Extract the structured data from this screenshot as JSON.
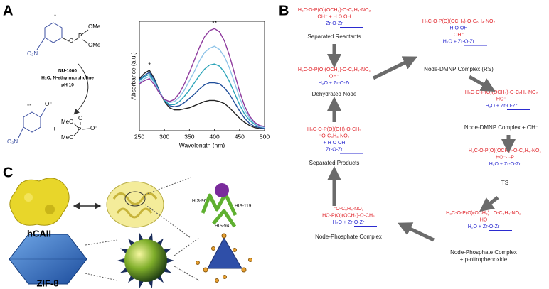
{
  "panels": {
    "a": "A",
    "b": "B",
    "c": "C"
  },
  "scheme_a": {
    "reactant": {
      "mark": "*",
      "nitro": "O₂N",
      "oxygen": "O",
      "phosphorus": "P",
      "methoxy": [
        "OMe",
        "OMe"
      ]
    },
    "conditions": [
      "NU-1000",
      "H₂O, N-ethylmorpholine",
      "pH 10"
    ],
    "products": {
      "mark": "**",
      "phenoxide": "O⁻",
      "nitro": "O₂N",
      "plus": "+",
      "methoxy": [
        "MeO",
        "MeO"
      ],
      "phosphorus": "P",
      "oxygen": "O",
      "oxide": "O⁻"
    }
  },
  "chart_data": {
    "type": "line",
    "xlabel": "Wavelength (nm)",
    "ylabel": "Absorbance (a.u.)",
    "x": [
      250,
      260,
      270,
      280,
      290,
      300,
      310,
      320,
      330,
      340,
      350,
      360,
      370,
      380,
      390,
      400,
      410,
      420,
      430,
      440,
      450,
      460,
      470,
      480,
      490,
      500
    ],
    "series": [
      {
        "color": "#222222",
        "values": [
          0.5,
          0.55,
          0.58,
          0.5,
          0.38,
          0.28,
          0.22,
          0.2,
          0.2,
          0.21,
          0.22,
          0.24,
          0.26,
          0.28,
          0.29,
          0.29,
          0.28,
          0.26,
          0.22,
          0.17,
          0.12,
          0.08,
          0.05,
          0.03,
          0.02,
          0.02
        ]
      },
      {
        "color": "#1f4e9a",
        "values": [
          0.49,
          0.53,
          0.56,
          0.49,
          0.38,
          0.29,
          0.24,
          0.23,
          0.24,
          0.27,
          0.31,
          0.35,
          0.4,
          0.44,
          0.46,
          0.46,
          0.45,
          0.41,
          0.35,
          0.27,
          0.19,
          0.12,
          0.07,
          0.04,
          0.03,
          0.02
        ]
      },
      {
        "color": "#2aa3b8",
        "values": [
          0.48,
          0.52,
          0.54,
          0.47,
          0.37,
          0.29,
          0.25,
          0.25,
          0.28,
          0.33,
          0.39,
          0.46,
          0.53,
          0.59,
          0.63,
          0.64,
          0.62,
          0.56,
          0.47,
          0.36,
          0.25,
          0.16,
          0.1,
          0.06,
          0.04,
          0.03
        ]
      },
      {
        "color": "#8fc4e8",
        "values": [
          0.46,
          0.5,
          0.52,
          0.46,
          0.37,
          0.3,
          0.27,
          0.28,
          0.32,
          0.39,
          0.48,
          0.57,
          0.67,
          0.75,
          0.79,
          0.81,
          0.78,
          0.71,
          0.6,
          0.46,
          0.32,
          0.2,
          0.12,
          0.07,
          0.04,
          0.03
        ]
      },
      {
        "color": "#8e3a9d",
        "values": [
          0.45,
          0.48,
          0.5,
          0.44,
          0.36,
          0.3,
          0.28,
          0.3,
          0.36,
          0.45,
          0.56,
          0.68,
          0.8,
          0.9,
          0.96,
          0.98,
          0.95,
          0.86,
          0.72,
          0.55,
          0.38,
          0.24,
          0.14,
          0.08,
          0.05,
          0.04
        ]
      }
    ],
    "xlim": [
      250,
      500
    ],
    "ylim": [
      0,
      1.05
    ],
    "xticks": [
      250,
      300,
      350,
      400,
      450,
      500
    ],
    "annotations": [
      {
        "text": "*",
        "x": 270
      },
      {
        "text": "**",
        "x": 400
      }
    ]
  },
  "scheme_b": {
    "states": [
      {
        "label": [
          "Separated Reactants"
        ],
        "species": [
          {
            "text": "H₃C-O-P(O)(OCH₃)-O-C₆H₄-NO₂",
            "color": "#e0242a"
          },
          {
            "text": "OH⁻    +    H  O  OH",
            "color": "#e0242a"
          },
          {
            "text": "Zr-O-Zr",
            "color": "#2b2bd0"
          }
        ]
      },
      {
        "label": [
          "Dehydrated Node"
        ],
        "species": [
          {
            "text": "H₃C-O-P(O)(OCH₃)-O-C₆H₄-NO₂",
            "color": "#e0242a"
          },
          {
            "text": "OH⁻",
            "color": "#e0242a"
          },
          {
            "text": "H₂O  +  Zr-O-Zr",
            "color": "#2b2bd0"
          }
        ]
      },
      {
        "label": [
          "Node-DMNP Complex (RS)"
        ],
        "species": [
          {
            "text": "H₃C-O-P(O)(OCH₃)-O-C₆H₄-NO₂",
            "color": "#e0242a"
          },
          {
            "text": "H  O  OH",
            "color": "#2b2bd0"
          },
          {
            "text": "OH⁻",
            "color": "#e0242a"
          },
          {
            "text": "H₂O  +  Zr-O-Zr",
            "color": "#2b2bd0"
          }
        ]
      },
      {
        "label": [
          "Node-DMNP Complex + OH⁻"
        ],
        "species": [
          {
            "text": "H₃C-O-P(O)(OCH₃)-O-C₆H₄-NO₂",
            "color": "#e0242a"
          },
          {
            "text": "HO⁻",
            "color": "#e0242a"
          },
          {
            "text": "H₂O  +  Zr-O-Zr",
            "color": "#2b2bd0"
          }
        ]
      },
      {
        "label": [
          "TS"
        ],
        "species": [
          {
            "text": "H₃C-O-P(O)(OCH₃)-O-C₆H₄-NO₂",
            "color": "#e0242a"
          },
          {
            "text": "HO⁻···P",
            "color": "#e0242a"
          },
          {
            "text": "H₂O  +  Zr-O-Zr",
            "color": "#2b2bd0"
          }
        ]
      },
      {
        "label": [
          "Node-Phosphate Complex",
          "+ p-nitrophenoxide"
        ],
        "species": [
          {
            "text": "H₃C-O-P(O)(OCH₃)   ⁻O-C₆H₄-NO₂",
            "color": "#e0242a"
          },
          {
            "text": "HO",
            "color": "#e0242a"
          },
          {
            "text": "H₂O  +  Zr-O-Zr",
            "color": "#2b2bd0"
          }
        ]
      },
      {
        "label": [
          "Node-Phosphate Complex"
        ],
        "species": [
          {
            "text": "⁻O-C₆H₄-NO₂",
            "color": "#e0242a"
          },
          {
            "text": "HO-P(O)(OCH₃)-O-CH₃",
            "color": "#e0242a"
          },
          {
            "text": "H₂O  +  Zr-O-Zr",
            "color": "#2b2bd0"
          }
        ]
      },
      {
        "label": [
          "Separated Products"
        ],
        "species": [
          {
            "text": "H₃C-O-P(O)(OH)-O-CH₃",
            "color": "#e0242a"
          },
          {
            "text": "⁻O-C₆H₄-NO₂",
            "color": "#e0242a"
          },
          {
            "text": "+  H  O  OH",
            "color": "#2b2bd0"
          },
          {
            "text": "Zr-O-Zr",
            "color": "#2b2bd0"
          }
        ]
      }
    ]
  },
  "panel_c": {
    "protein": "hCAII",
    "framework": "ZIF-8",
    "residues": [
      "HIS-96",
      "HIS-94",
      "HIS-119"
    ]
  }
}
